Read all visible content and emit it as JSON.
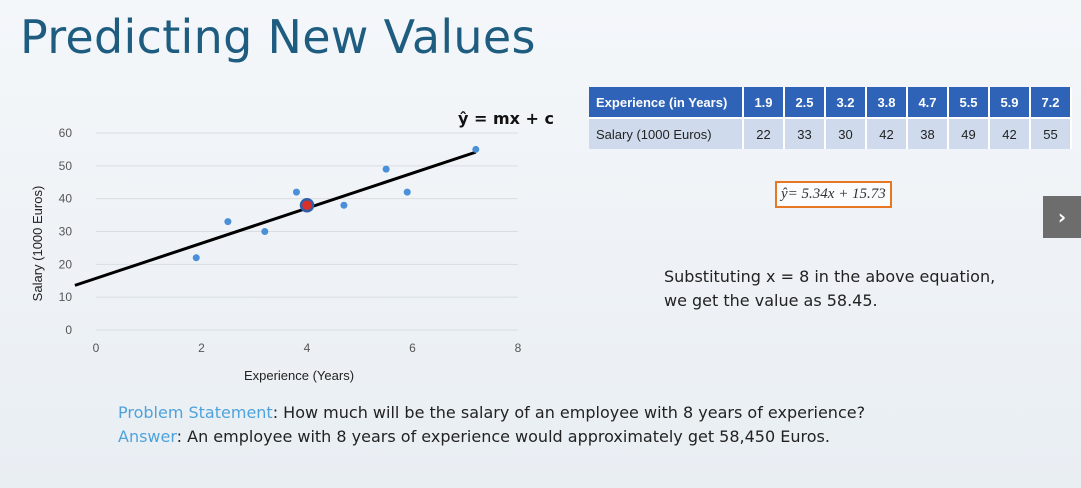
{
  "slide": {
    "title": "Predicting New Values"
  },
  "table": {
    "header_label": "Experience (in Years)",
    "row_label": "Salary (1000 Euros)",
    "experience": [
      "1.9",
      "2.5",
      "3.2",
      "3.8",
      "4.7",
      "5.5",
      "5.9",
      "7.2"
    ],
    "salary": [
      "22",
      "33",
      "30",
      "42",
      "38",
      "49",
      "42",
      "55"
    ]
  },
  "equation_box": {
    "text": "ŷ= 5.34x + 15.73"
  },
  "substitution": {
    "line1": "Substituting x = 8 in the above equation,",
    "line2": "we get the value as 58.45."
  },
  "problem": {
    "label": "Problem Statement",
    "text": ": How much will be the salary of an employee with 8 years of experience?",
    "answer_label": "Answer",
    "answer_text": ": An employee with 8 years of experience would approximately get 58,450 Euros."
  },
  "nav": {
    "next_glyph": "›"
  },
  "colors": {
    "title": "#1f5d80",
    "points": "#4a90d9",
    "highlight_point": "#d9302a",
    "highlight_ring": "#2f5fa8",
    "line": "#000000",
    "table_header": "#2e63b8",
    "table_body": "#cfdbec",
    "equation_border": "#e87722",
    "emphasis_text": "#4ea3dc"
  },
  "chart_data": {
    "type": "scatter",
    "title": "",
    "xlabel": "Experience (Years)",
    "ylabel": "Salary (1000 Euros)",
    "xlim": [
      0,
      8
    ],
    "ylim": [
      0,
      60
    ],
    "xticks": [
      "0",
      "2",
      "4",
      "6",
      "8"
    ],
    "yticks": [
      "0",
      "10",
      "20",
      "30",
      "40",
      "50",
      "60"
    ],
    "grid": true,
    "points": [
      {
        "x": 1.9,
        "y": 22
      },
      {
        "x": 2.5,
        "y": 33
      },
      {
        "x": 3.2,
        "y": 30
      },
      {
        "x": 3.8,
        "y": 42
      },
      {
        "x": 4.7,
        "y": 38
      },
      {
        "x": 5.5,
        "y": 49
      },
      {
        "x": 5.9,
        "y": 42
      },
      {
        "x": 7.2,
        "y": 55
      }
    ],
    "highlight_point": {
      "x": 4.0,
      "y": 38
    },
    "regression_line": {
      "slope": 5.34,
      "intercept": 15.73,
      "x_from": 0,
      "x_to": 7.2
    },
    "line_annotation": "ŷ = mx + c"
  }
}
